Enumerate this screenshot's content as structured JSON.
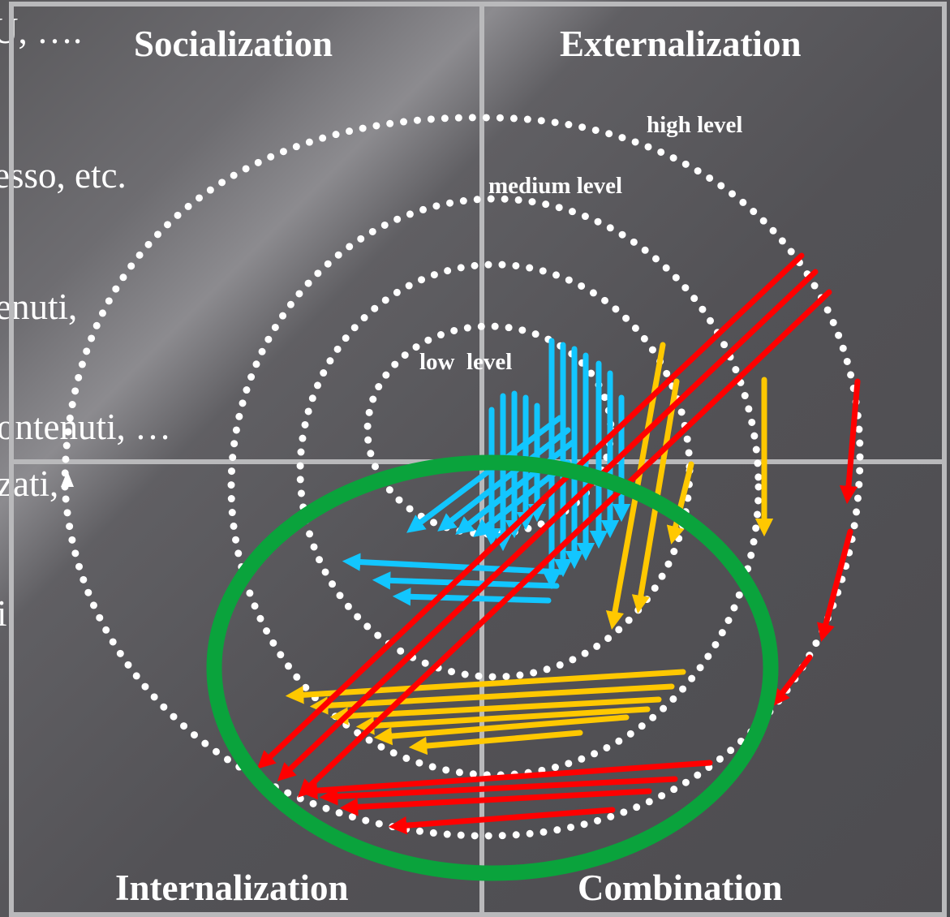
{
  "quadrants": {
    "top_left": "Socialization",
    "top_right": "Externalization",
    "bottom_left": "Internalization",
    "bottom_right": "Combination"
  },
  "levels": {
    "high": "high level",
    "medium": "medium level",
    "low": "low  level"
  },
  "background_text": {
    "line1": "U, ….",
    "line2": "esso, etc.",
    "line3": "enuti,",
    "line4": "ontenuti, …",
    "line5": "zati,",
    "line6": "i"
  },
  "colors": {
    "grid": "#b9b9bb",
    "dots": "#ffffff",
    "cyan_arrows": "#12c6ff",
    "yellow_arrows": "#ffc800",
    "red_arrows": "#ff0000",
    "highlight_ellipse": "#0aa33c"
  }
}
